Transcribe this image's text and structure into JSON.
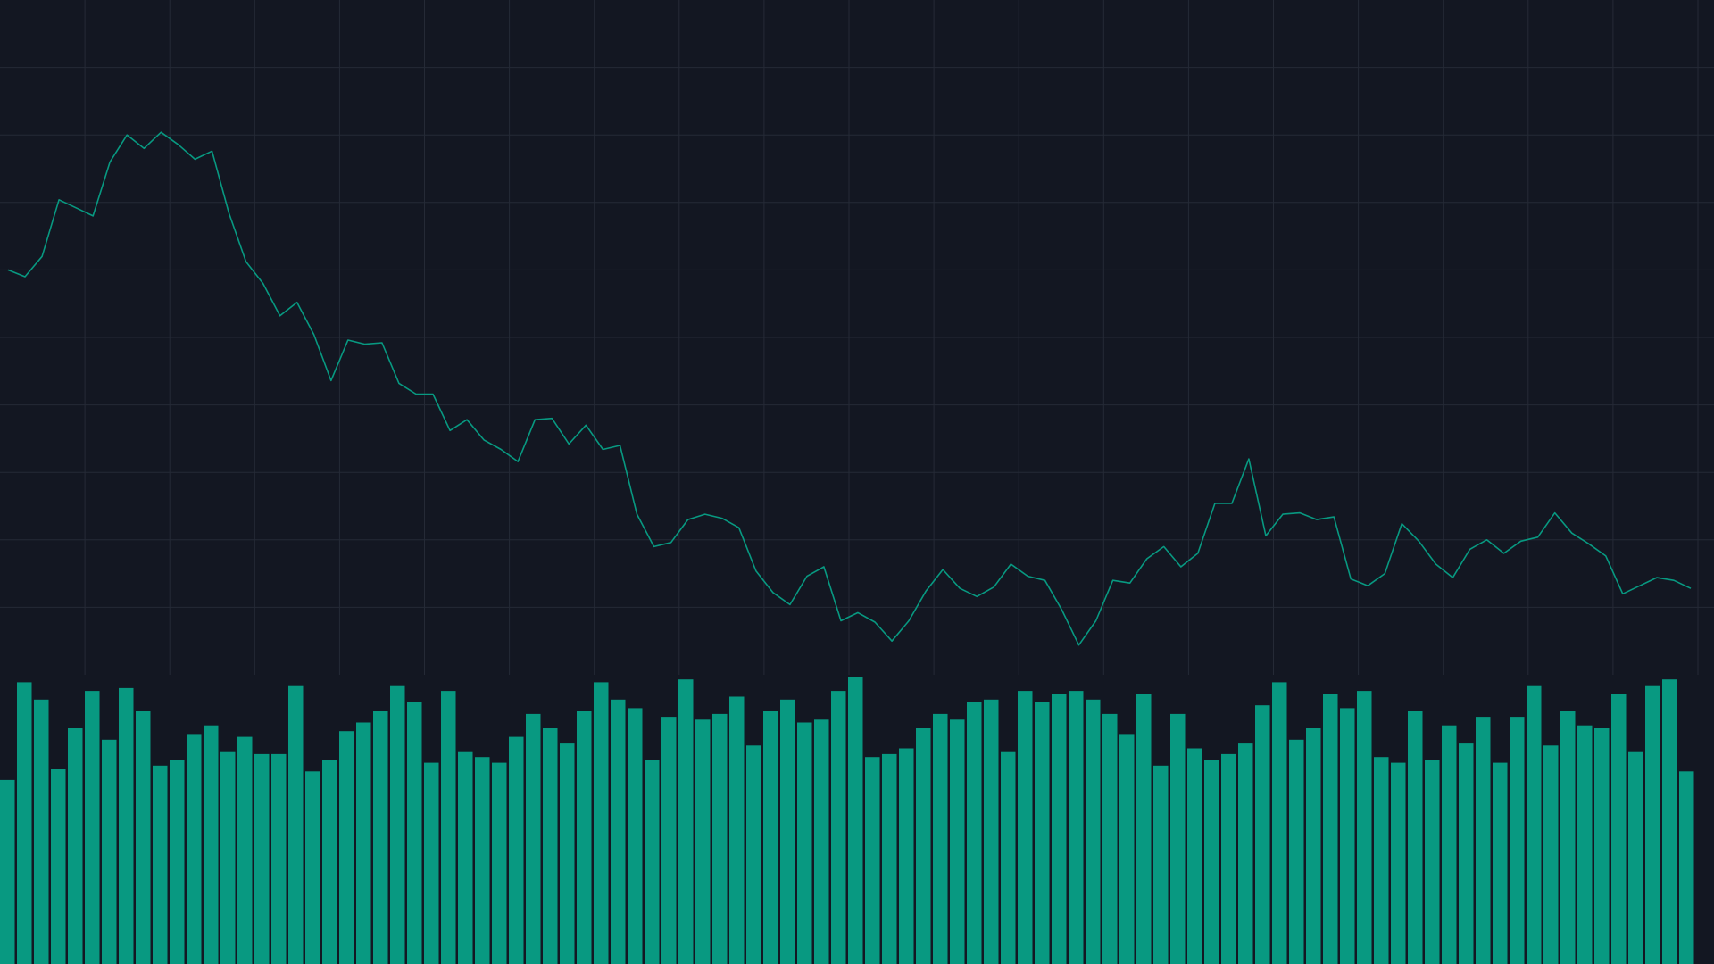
{
  "colors": {
    "background": "#131722",
    "grid": "#252a36",
    "line": "#089981",
    "volume": "#089981"
  },
  "chart_data": [
    {
      "type": "line",
      "series": [
        {
          "values": [
            1.3,
            1.295,
            1.31,
            1.352,
            1.346,
            1.34,
            1.38,
            1.4,
            1.39,
            1.402,
            1.393,
            1.382,
            1.388,
            1.342,
            1.306,
            1.29,
            1.266,
            1.276,
            1.252,
            1.218,
            1.248,
            1.245,
            1.246,
            1.216,
            1.208,
            1.208,
            1.181,
            1.189,
            1.174,
            1.167,
            1.158,
            1.189,
            1.19,
            1.171,
            1.185,
            1.167,
            1.17,
            1.119,
            1.095,
            1.098,
            1.115,
            1.119,
            1.116,
            1.109,
            1.077,
            1.061,
            1.052,
            1.073,
            1.08,
            1.04,
            1.046,
            1.039,
            1.025,
            1.04,
            1.062,
            1.078,
            1.064,
            1.058,
            1.065,
            1.082,
            1.073,
            1.07,
            1.048,
            1.022,
            1.04,
            1.07,
            1.068,
            1.086,
            1.095,
            1.08,
            1.09,
            1.127,
            1.127,
            1.16,
            1.103,
            1.119,
            1.12,
            1.115,
            1.117,
            1.071,
            1.066,
            1.075,
            1.112,
            1.099,
            1.082,
            1.072,
            1.093,
            1.1,
            1.09,
            1.099,
            1.102,
            1.12,
            1.105,
            1.097,
            1.088,
            1.06,
            1.066,
            1.072,
            1.07,
            1.064
          ]
        }
      ],
      "ylim": [
        1.0,
        1.5
      ],
      "grid": true
    },
    {
      "type": "bar",
      "series": [
        {
          "values": [
            0.64,
            0.98,
            0.92,
            0.68,
            0.82,
            0.95,
            0.78,
            0.96,
            0.88,
            0.69,
            0.71,
            0.8,
            0.83,
            0.74,
            0.79,
            0.73,
            0.73,
            0.97,
            0.67,
            0.71,
            0.81,
            0.84,
            0.88,
            0.97,
            0.91,
            0.7,
            0.95,
            0.74,
            0.72,
            0.7,
            0.79,
            0.87,
            0.82,
            0.77,
            0.88,
            0.98,
            0.92,
            0.89,
            0.71,
            0.86,
            0.99,
            0.85,
            0.87,
            0.93,
            0.76,
            0.88,
            0.92,
            0.84,
            0.85,
            0.95,
            1.0,
            0.72,
            0.73,
            0.75,
            0.82,
            0.87,
            0.85,
            0.91,
            0.92,
            0.74,
            0.95,
            0.91,
            0.94,
            0.95,
            0.92,
            0.87,
            0.8,
            0.94,
            0.69,
            0.87,
            0.75,
            0.71,
            0.73,
            0.77,
            0.9,
            0.98,
            0.78,
            0.82,
            0.94,
            0.89,
            0.95,
            0.72,
            0.7,
            0.88,
            0.71,
            0.83,
            0.77,
            0.86,
            0.7,
            0.86,
            0.97,
            0.76,
            0.88,
            0.83,
            0.82,
            0.94,
            0.74,
            0.97,
            0.99,
            0.67
          ]
        }
      ],
      "ylim": [
        0,
        1
      ]
    }
  ]
}
